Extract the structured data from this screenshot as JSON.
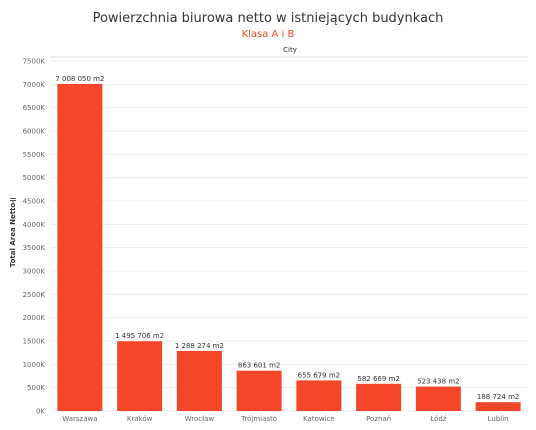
{
  "colors": {
    "bar": "#f4472a",
    "grid": "#eeeeee",
    "title": "#333333",
    "subtitle": "#f04a2c"
  },
  "chart_data": {
    "type": "bar",
    "title": "Powierzchnia biurowa netto w istniejących budynkach",
    "subtitle": "Klasa A i B",
    "column_header": "City",
    "ylabel": "Total Area Netto",
    "ylabel_icon": "filter-icon",
    "ylim": [
      0,
      7500000
    ],
    "yticks": [
      {
        "value": 0,
        "label": "0K"
      },
      {
        "value": 500000,
        "label": "500K"
      },
      {
        "value": 1000000,
        "label": "1000K"
      },
      {
        "value": 1500000,
        "label": "1500K"
      },
      {
        "value": 2000000,
        "label": "2000K"
      },
      {
        "value": 2500000,
        "label": "2500K"
      },
      {
        "value": 3000000,
        "label": "3000K"
      },
      {
        "value": 3500000,
        "label": "3500K"
      },
      {
        "value": 4000000,
        "label": "4000K"
      },
      {
        "value": 4500000,
        "label": "4500K"
      },
      {
        "value": 5000000,
        "label": "5000K"
      },
      {
        "value": 5500000,
        "label": "5500K"
      },
      {
        "value": 6000000,
        "label": "6000K"
      },
      {
        "value": 6500000,
        "label": "6500K"
      },
      {
        "value": 7000000,
        "label": "7000K"
      },
      {
        "value": 7500000,
        "label": "7500K"
      }
    ],
    "categories": [
      "Warszawa",
      "Kraków",
      "Wrocław",
      "Trójmiasto",
      "Katowice",
      "Poznań",
      "Łódź",
      "Lublin"
    ],
    "values": [
      7008050,
      1495706,
      1288274,
      863601,
      655679,
      582669,
      523438,
      188724
    ],
    "data_labels": [
      "7 008 050 m2",
      "1 495 706 m2",
      "1 288 274 m2",
      "863 601 m2",
      "655 679 m2",
      "582 669 m2",
      "523 438 m2",
      "188 724 m2"
    ],
    "grid": true,
    "legend": "none"
  }
}
